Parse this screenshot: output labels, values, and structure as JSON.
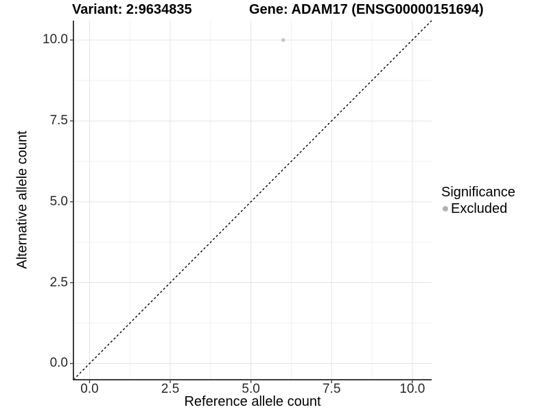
{
  "header": {
    "variant_title": "Variant: 2:9634835",
    "gene_title": "Gene: ADAM17 (ENSG00000151694)"
  },
  "chart_data": {
    "type": "scatter",
    "xlabel": "Reference allele count",
    "ylabel": "Alternative allele count",
    "xlim": [
      -0.5,
      10.6
    ],
    "ylim": [
      -0.5,
      10.6
    ],
    "x_ticks": {
      "values": [
        0,
        2.5,
        5,
        7.5,
        10
      ],
      "labels": [
        "0.0",
        "2.5",
        "5.0",
        "7.5",
        "10.0"
      ]
    },
    "y_ticks": {
      "values": [
        0,
        2.5,
        5,
        7.5,
        10
      ],
      "labels": [
        "0.0",
        "2.5",
        "5.0",
        "7.5",
        "10.0"
      ]
    },
    "x_minor_gridlines": [
      1.25,
      3.75,
      6.25,
      8.75
    ],
    "y_minor_gridlines": [
      1.25,
      3.75,
      6.25,
      8.75
    ],
    "grid": true,
    "legend_position": "right",
    "series": [
      {
        "name": "Excluded",
        "points": [
          {
            "x": 6,
            "y": 10
          }
        ],
        "color": "#c2c2c2"
      }
    ],
    "identity_line": {
      "slope": 1,
      "intercept": 0,
      "style": "dashed",
      "color": "#000000"
    }
  },
  "legend": {
    "title": "Significance",
    "items": [
      {
        "label": "Excluded",
        "color": "#b2b2b2"
      }
    ]
  },
  "colors": {
    "background": "#ffffff",
    "grid_major": "#e4e4e4",
    "grid_minor": "#f1f1f1",
    "axis_line": "#3d3d3d",
    "tick_mark": "#3d3d3d",
    "tick_label": "#262626",
    "point": "#c2c2c2"
  }
}
